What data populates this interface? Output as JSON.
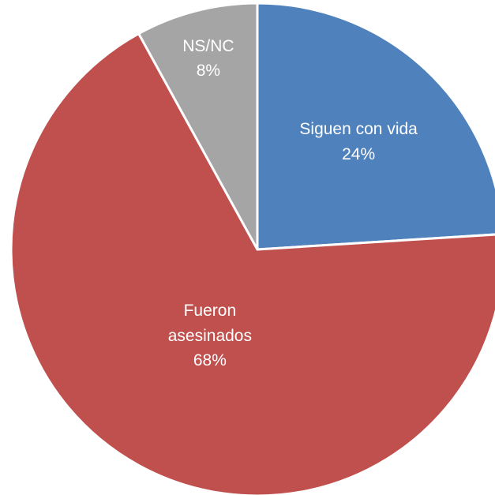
{
  "chart_data": {
    "type": "pie",
    "categories": [
      "Siguen con vida",
      "Fueron asesinados",
      "NS/NC"
    ],
    "values": [
      24,
      68,
      8
    ],
    "value_labels": [
      "24%",
      "68%",
      "8%"
    ],
    "colors": [
      "#4f81bd",
      "#c0504d",
      "#a5a5a5"
    ]
  }
}
